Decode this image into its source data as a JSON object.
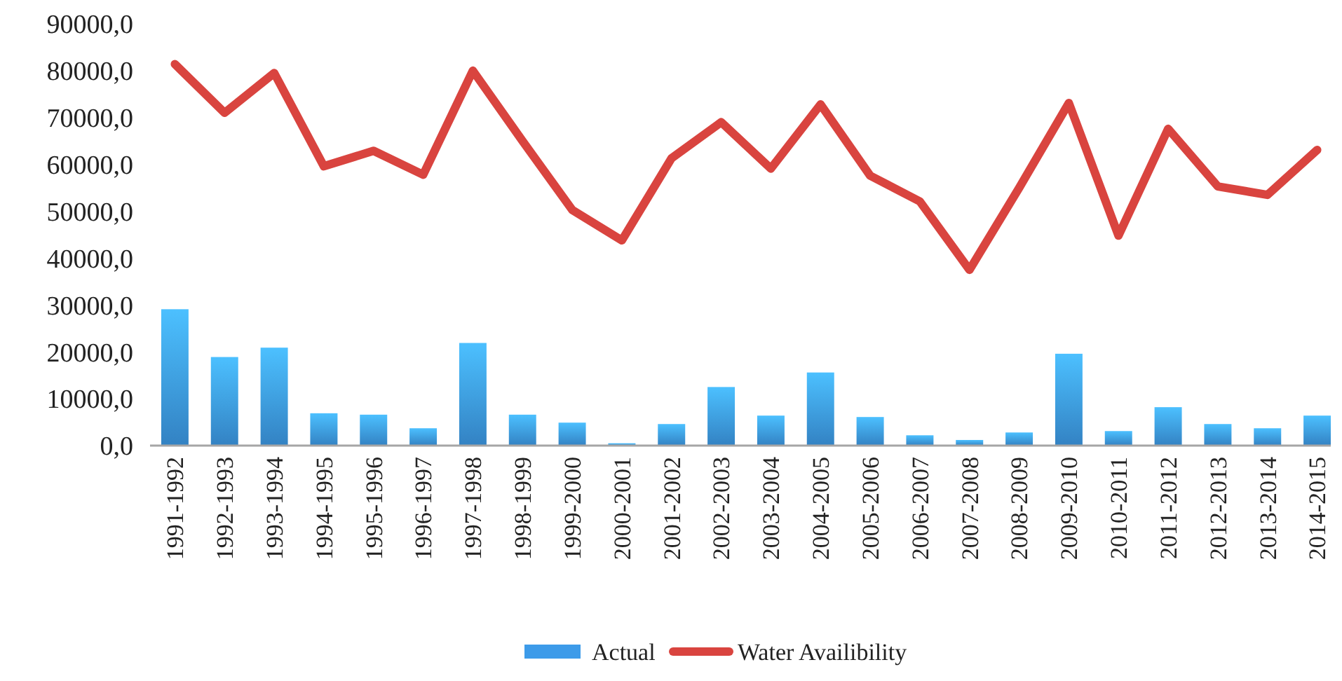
{
  "chart_data": {
    "type": "bar",
    "categories": [
      "1991-1992",
      "1992-1993",
      "1993-1994",
      "1994-1995",
      "1995-1996",
      "1996-1997",
      "1997-1998",
      "1998-1999",
      "1999-2000",
      "2000-2001",
      "2001-2002",
      "2002-2003",
      "2003-2004",
      "2004-2005",
      "2005-2006",
      "2006-2007",
      "2007-2008",
      "2008-2009",
      "2009-2010",
      "2010-2011",
      "2011-2012",
      "2012-2013",
      "2013-2014",
      "2014-2015"
    ],
    "series": [
      {
        "name": "Actual",
        "color": "#3d9be9",
        "values": [
          29100,
          18900,
          20900,
          6900,
          6600,
          3700,
          21900,
          6600,
          4900,
          500,
          4600,
          12500,
          6400,
          15600,
          6100,
          2200,
          1200,
          2800,
          19600,
          3100,
          8200,
          4600,
          3700,
          6400
        ]
      },
      {
        "name": "Water Availibility",
        "type": "line",
        "color": "#d9443f",
        "values": [
          81400,
          71000,
          79500,
          59600,
          62900,
          57800,
          80000,
          65000,
          50300,
          43800,
          61300,
          69000,
          59100,
          72800,
          57600,
          52100,
          37500,
          55000,
          73100,
          44800,
          67600,
          55300,
          53500,
          63100
        ]
      }
    ],
    "ylim": [
      0,
      90000
    ],
    "yticks": [
      {
        "value": 0,
        "label": "0,0"
      },
      {
        "value": 10000,
        "label": "10000,0"
      },
      {
        "value": 20000,
        "label": "20000,0"
      },
      {
        "value": 30000,
        "label": "30000,0"
      },
      {
        "value": 40000,
        "label": "40000,0"
      },
      {
        "value": 50000,
        "label": "50000,0"
      },
      {
        "value": 60000,
        "label": "60000,0"
      },
      {
        "value": 70000,
        "label": "70000,0"
      },
      {
        "value": 80000,
        "label": "80000,0"
      },
      {
        "value": 90000,
        "label": "90000,0"
      }
    ],
    "grid": false,
    "legend": "bottom",
    "line_style": "solid",
    "marker": "none"
  }
}
